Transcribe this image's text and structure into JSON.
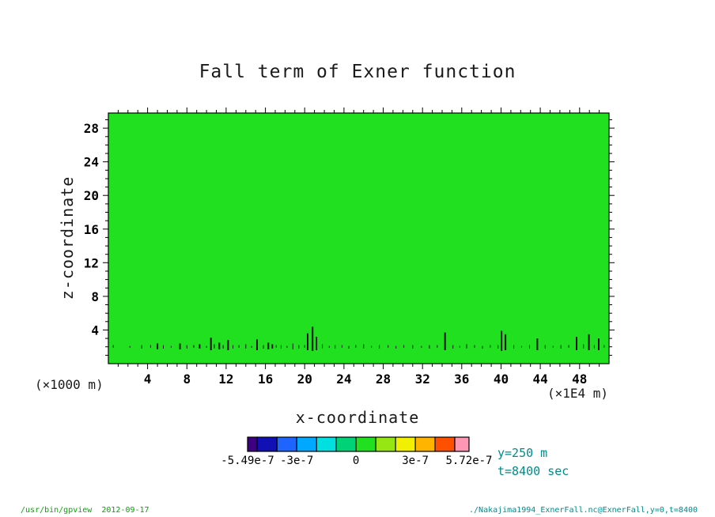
{
  "title": "Fall term of Exner function",
  "axes": {
    "x_title": "x-coordinate",
    "y_title": "z-coordinate",
    "x_unit_left": "(×1000 m)",
    "x_unit_right": "(×1E4 m)"
  },
  "annotations": {
    "line1": "y=250 m",
    "line2": "t=8400 sec"
  },
  "footer": {
    "left": "/usr/bin/gpview  2012-09-17",
    "right": "./Nakajima1994_ExnerFall.nc@ExnerFall,y=0,t=8400"
  },
  "colors": {
    "field": "#20e020",
    "speckle": "#141414",
    "annotation": "#008b8b",
    "footer_left": "#00a800",
    "footer_right": "#008b8b"
  },
  "chart_data": {
    "type": "heatmap",
    "title": "Fall term of Exner function",
    "xlabel": "x-coordinate",
    "ylabel": "z-coordinate",
    "x_unit": "×1000 m (×1E4 m)",
    "xlim": [
      0,
      51
    ],
    "ylim": [
      0,
      29.8
    ],
    "x_major_ticks": [
      4,
      8,
      12,
      16,
      20,
      24,
      28,
      32,
      36,
      40,
      44,
      48
    ],
    "y_major_ticks": [
      4,
      8,
      12,
      16,
      20,
      24,
      28
    ],
    "value_range": [
      -5.49e-07,
      5.72e-07
    ],
    "field_description": "Field value is ~0 (bright green) almost everywhere; thin dark strongly-negative speckles concentrated along z≈2 near the surface",
    "annotations": [
      "y=250 m",
      "t=8400 sec"
    ],
    "colorbar": {
      "unit": "1e-7",
      "cells": [
        {
          "from": -5.49,
          "to": -5,
          "color": "#3c0080"
        },
        {
          "from": -5,
          "to": -4,
          "color": "#1010b4"
        },
        {
          "from": -4,
          "to": -3,
          "color": "#1e64ff"
        },
        {
          "from": -3,
          "to": -2,
          "color": "#00a8ff"
        },
        {
          "from": -2,
          "to": -1,
          "color": "#00e0e0"
        },
        {
          "from": -1,
          "to": 0,
          "color": "#00d278"
        },
        {
          "from": 0,
          "to": 1,
          "color": "#20e020"
        },
        {
          "from": 1,
          "to": 2,
          "color": "#96e614"
        },
        {
          "from": 2,
          "to": 3,
          "color": "#f0f000"
        },
        {
          "from": 3,
          "to": 4,
          "color": "#ffb400"
        },
        {
          "from": 4,
          "to": 5,
          "color": "#ff5000"
        },
        {
          "from": 5,
          "to": 5.72,
          "color": "#ff96b4"
        }
      ],
      "labels": [
        {
          "value": -5.49,
          "text": "-5.49e-7"
        },
        {
          "value": -3,
          "text": "-3e-7"
        },
        {
          "value": 0,
          "text": "0"
        },
        {
          "value": 3,
          "text": "3e-7"
        },
        {
          "value": 5.72,
          "text": "5.72e-7"
        }
      ]
    },
    "speckles": [
      [
        0.5,
        1.9,
        2.2,
        1
      ],
      [
        2.2,
        1.9,
        2.1,
        1
      ],
      [
        3.4,
        1.8,
        2.2,
        1
      ],
      [
        4.3,
        1.9,
        2.2,
        1
      ],
      [
        5.0,
        1.7,
        2.4,
        2
      ],
      [
        5.6,
        1.8,
        2.2,
        1
      ],
      [
        6.4,
        1.9,
        2.1,
        1
      ],
      [
        7.3,
        1.7,
        2.4,
        2
      ],
      [
        8.0,
        1.8,
        2.2,
        1
      ],
      [
        8.7,
        1.9,
        2.2,
        1
      ],
      [
        9.3,
        1.8,
        2.3,
        2
      ],
      [
        10.0,
        1.9,
        2.1,
        1
      ],
      [
        10.45,
        1.6,
        3.1,
        2
      ],
      [
        10.8,
        1.8,
        2.3,
        1
      ],
      [
        11.3,
        1.7,
        2.5,
        2
      ],
      [
        11.7,
        1.8,
        2.2,
        1
      ],
      [
        12.2,
        1.6,
        2.8,
        2
      ],
      [
        12.7,
        1.8,
        2.2,
        1
      ],
      [
        13.3,
        1.9,
        2.2,
        1
      ],
      [
        14.0,
        1.8,
        2.3,
        1
      ],
      [
        14.6,
        1.9,
        2.1,
        1
      ],
      [
        15.15,
        1.6,
        2.9,
        2
      ],
      [
        15.8,
        1.8,
        2.2,
        1
      ],
      [
        16.3,
        1.7,
        2.5,
        2
      ],
      [
        16.7,
        1.8,
        2.3,
        2
      ],
      [
        17.1,
        1.9,
        2.2,
        1
      ],
      [
        17.6,
        1.8,
        2.2,
        1
      ],
      [
        18.2,
        1.9,
        2.1,
        1
      ],
      [
        18.8,
        1.7,
        2.4,
        1
      ],
      [
        19.4,
        1.8,
        2.2,
        1
      ],
      [
        20.0,
        1.9,
        2.2,
        1
      ],
      [
        20.3,
        1.6,
        3.6,
        2
      ],
      [
        20.8,
        1.5,
        4.4,
        2
      ],
      [
        21.2,
        1.6,
        3.2,
        2
      ],
      [
        21.8,
        1.8,
        2.3,
        1
      ],
      [
        22.5,
        1.9,
        2.1,
        1
      ],
      [
        23.1,
        1.8,
        2.2,
        1
      ],
      [
        23.8,
        1.9,
        2.2,
        1
      ],
      [
        24.5,
        1.8,
        2.1,
        1
      ],
      [
        25.2,
        1.9,
        2.2,
        1
      ],
      [
        26.0,
        1.8,
        2.3,
        1
      ],
      [
        26.8,
        1.9,
        2.1,
        1
      ],
      [
        27.6,
        1.8,
        2.2,
        1
      ],
      [
        28.5,
        1.9,
        2.2,
        1
      ],
      [
        29.3,
        1.8,
        2.1,
        1
      ],
      [
        30.1,
        1.9,
        2.2,
        1
      ],
      [
        31.0,
        1.8,
        2.2,
        1
      ],
      [
        31.9,
        1.9,
        2.1,
        1
      ],
      [
        32.7,
        1.8,
        2.2,
        1
      ],
      [
        33.5,
        1.9,
        2.2,
        1
      ],
      [
        34.3,
        1.6,
        3.7,
        2
      ],
      [
        35.1,
        1.8,
        2.2,
        1
      ],
      [
        35.8,
        1.9,
        2.1,
        1
      ],
      [
        36.5,
        1.8,
        2.3,
        1
      ],
      [
        37.3,
        1.9,
        2.2,
        1
      ],
      [
        38.1,
        1.8,
        2.1,
        1
      ],
      [
        38.9,
        1.9,
        2.2,
        1
      ],
      [
        39.7,
        1.8,
        2.2,
        1
      ],
      [
        40.05,
        1.5,
        3.9,
        2
      ],
      [
        40.45,
        1.6,
        3.5,
        2
      ],
      [
        41.3,
        1.8,
        2.2,
        1
      ],
      [
        42.1,
        1.9,
        2.1,
        1
      ],
      [
        42.9,
        1.8,
        2.2,
        1
      ],
      [
        43.7,
        1.6,
        3.0,
        2
      ],
      [
        44.5,
        1.8,
        2.2,
        1
      ],
      [
        45.3,
        1.9,
        2.1,
        1
      ],
      [
        46.1,
        1.8,
        2.2,
        1
      ],
      [
        46.9,
        1.9,
        2.2,
        1
      ],
      [
        47.7,
        1.6,
        3.2,
        2
      ],
      [
        48.4,
        1.8,
        2.3,
        1
      ],
      [
        48.95,
        1.6,
        3.5,
        2
      ],
      [
        49.5,
        1.8,
        2.2,
        1
      ],
      [
        49.95,
        1.6,
        3.0,
        2
      ],
      [
        50.5,
        1.9,
        2.2,
        1
      ]
    ]
  }
}
